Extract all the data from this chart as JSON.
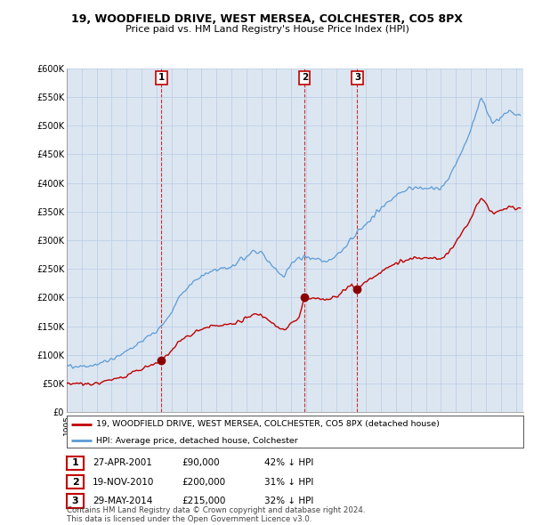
{
  "title1": "19, WOODFIELD DRIVE, WEST MERSEA, COLCHESTER, CO5 8PX",
  "title2": "Price paid vs. HM Land Registry's House Price Index (HPI)",
  "ylim": [
    0,
    600000
  ],
  "yticks": [
    0,
    50000,
    100000,
    150000,
    200000,
    250000,
    300000,
    350000,
    400000,
    450000,
    500000,
    550000,
    600000
  ],
  "ytick_labels": [
    "£0",
    "£50K",
    "£100K",
    "£150K",
    "£200K",
    "£250K",
    "£300K",
    "£350K",
    "£400K",
    "£450K",
    "£500K",
    "£550K",
    "£600K"
  ],
  "xlim_start": 1995.0,
  "xlim_end": 2025.5,
  "hpi_color": "#5b9bd5",
  "price_color": "#c00000",
  "marker_color": "#8b0000",
  "plot_bg_color": "#dce6f1",
  "sale1_x": 2001.32,
  "sale1_y": 90000,
  "sale1_label": "1",
  "sale2_x": 2010.89,
  "sale2_y": 200000,
  "sale2_label": "2",
  "sale3_x": 2014.41,
  "sale3_y": 215000,
  "sale3_label": "3",
  "legend_line1": "19, WOODFIELD DRIVE, WEST MERSEA, COLCHESTER, CO5 8PX (detached house)",
  "legend_line2": "HPI: Average price, detached house, Colchester",
  "tx1_num": "1",
  "tx1_date": "27-APR-2001",
  "tx1_price": "£90,000",
  "tx1_hpi": "42% ↓ HPI",
  "tx2_num": "2",
  "tx2_date": "19-NOV-2010",
  "tx2_price": "£200,000",
  "tx2_hpi": "31% ↓ HPI",
  "tx3_num": "3",
  "tx3_date": "29-MAY-2014",
  "tx3_price": "£215,000",
  "tx3_hpi": "32% ↓ HPI",
  "footnote1": "Contains HM Land Registry data © Crown copyright and database right 2024.",
  "footnote2": "This data is licensed under the Open Government Licence v3.0.",
  "bg_color": "#ffffff",
  "grid_color": "#b8cce4"
}
